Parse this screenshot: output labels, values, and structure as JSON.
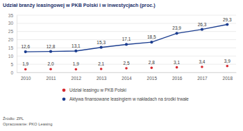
{
  "chart_data": {
    "type": "line",
    "title": "Udział branży leasingowej w PKB Polski i w inwestycjach (proc.)",
    "categories": [
      "2010",
      "2011",
      "2012",
      "2013",
      "2014",
      "2015",
      "2016",
      "2017",
      "2018"
    ],
    "series": [
      {
        "name": "Udział leasingu w PKB Polski",
        "color": "#d7282f",
        "type": "scatter",
        "marker": "circle",
        "values": [
          1.9,
          2.0,
          1.9,
          2.1,
          2.5,
          2.8,
          3.1,
          3.4,
          3.9
        ],
        "value_labels": [
          "1,9",
          "2,0",
          "1,9",
          "2,1",
          "2,5",
          "2,8",
          "3,1",
          "3,4",
          "3,9"
        ]
      },
      {
        "name": "Aktywa finansowane leasingiem w nakładach na środki trwałe",
        "color": "#1b3d8f",
        "type": "line",
        "marker": "circle",
        "values": [
          12.6,
          12.8,
          13.1,
          15.3,
          17.1,
          18.5,
          23.9,
          26.3,
          29.3
        ],
        "value_labels": [
          "12,6",
          "12,8",
          "13,1",
          "15,3",
          "17,1",
          "18,5",
          "23,9",
          "26,3",
          "29,3"
        ]
      }
    ],
    "ylim": [
      0,
      35
    ],
    "yticks": [
      0,
      5,
      10,
      15,
      20,
      25,
      30,
      35
    ],
    "grid": true,
    "data_labels": true,
    "legend": "bottom",
    "annotations": [
      "Źródło: ZPL",
      "Opracowanie: PKO Leasing"
    ]
  }
}
